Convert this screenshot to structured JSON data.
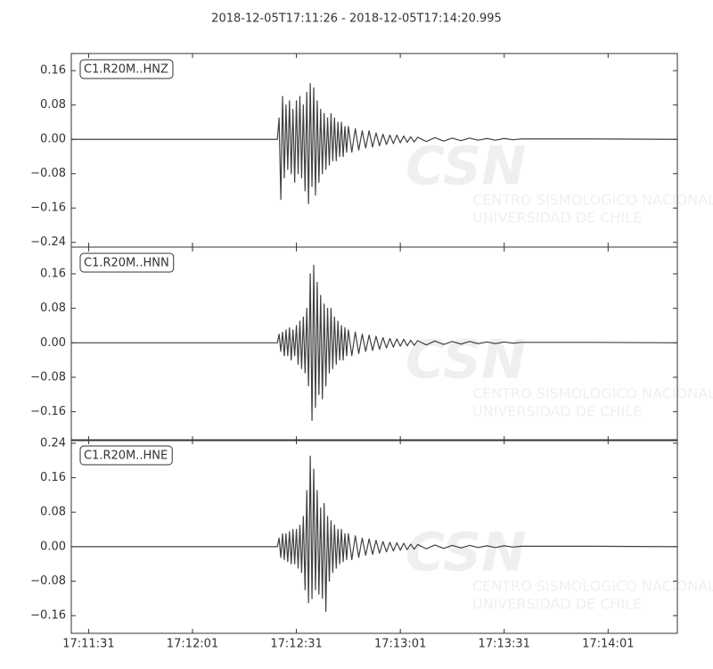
{
  "title": "2018-12-05T17:11:26  -  2018-12-05T17:14:20.995",
  "watermark": {
    "logo": "CSN",
    "line1": "CENTRO SISMOLOGICO NACIONAL",
    "line2": "UNIVERSIDAD DE CHILE"
  },
  "chart_data": [
    {
      "type": "line",
      "label": "C1.R20M..HNZ",
      "color": "#404040",
      "xlim": [
        0,
        174.995
      ],
      "ylim": [
        -0.251,
        0.2
      ],
      "yticks": [
        0.16,
        0.08,
        {
          "value": 0,
          "label": "0.00"
        },
        {
          "value": -0.08,
          "label": "−0.08"
        },
        {
          "value": -0.16,
          "label": "−0.16"
        },
        {
          "value": -0.24,
          "label": "−0.24"
        }
      ],
      "x": [
        0,
        30,
        59.5,
        60,
        60.5,
        61,
        61.5,
        62,
        62.5,
        63,
        63.5,
        64,
        64.5,
        65,
        65.5,
        66,
        66.5,
        67,
        67.5,
        68,
        68.5,
        69,
        69.5,
        70,
        70.5,
        71,
        71.5,
        72,
        72.5,
        73,
        73.5,
        74,
        74.5,
        75,
        75.5,
        76,
        76.5,
        77,
        77.5,
        78,
        78.5,
        79,
        79.5,
        80,
        81,
        82,
        83,
        84,
        85,
        86,
        87,
        88,
        89,
        90,
        91,
        92,
        93,
        94,
        95,
        96,
        97,
        98,
        99,
        100,
        102.5,
        105,
        107.5,
        110,
        112.5,
        115,
        117.5,
        120,
        122.5,
        125,
        127.5,
        130,
        150,
        174.995
      ],
      "series": [
        {
          "values": [
            0,
            0,
            0,
            0.05,
            -0.14,
            0.1,
            -0.09,
            0.08,
            -0.07,
            0.09,
            -0.08,
            0.07,
            -0.1,
            0.09,
            -0.08,
            0.1,
            -0.09,
            0.08,
            -0.12,
            0.11,
            -0.15,
            0.13,
            -0.11,
            0.12,
            -0.13,
            0.09,
            -0.1,
            0.07,
            -0.08,
            0.06,
            -0.07,
            0.05,
            -0.06,
            0.06,
            -0.05,
            0.05,
            -0.05,
            0.04,
            -0.04,
            0.04,
            -0.04,
            0.03,
            -0.03,
            0.03,
            -0.03,
            0.025,
            -0.025,
            0.02,
            -0.02,
            0.02,
            -0.018,
            0.015,
            -0.015,
            0.012,
            -0.012,
            0.01,
            -0.01,
            0.01,
            -0.008,
            0.008,
            -0.007,
            0.006,
            -0.006,
            0.005,
            -0.005,
            0.004,
            -0.004,
            0.003,
            -0.003,
            0.003,
            -0.002,
            0.002,
            -0.002,
            0.002,
            -0.001,
            0.001,
            0.001,
            0
          ]
        }
      ]
    },
    {
      "type": "line",
      "label": "C1.R20M..HNN",
      "color": "#404040",
      "xlim": [
        0,
        174.995
      ],
      "ylim": [
        -0.227,
        0.222
      ],
      "yticks": [
        0.16,
        0.08,
        {
          "value": 0,
          "label": "0.00"
        },
        {
          "value": -0.08,
          "label": "−0.08"
        },
        {
          "value": -0.16,
          "label": "−0.16"
        }
      ],
      "x": [
        0,
        30,
        59.5,
        60,
        60.5,
        61,
        61.5,
        62,
        62.5,
        63,
        63.5,
        64,
        64.5,
        65,
        65.5,
        66,
        66.5,
        67,
        67.5,
        68,
        68.5,
        69,
        69.5,
        70,
        70.5,
        71,
        71.5,
        72,
        72.5,
        73,
        73.5,
        74,
        74.5,
        75,
        75.5,
        76,
        76.5,
        77,
        77.5,
        78,
        78.5,
        79,
        79.5,
        80,
        81,
        82,
        83,
        84,
        85,
        86,
        87,
        88,
        89,
        90,
        91,
        92,
        93,
        94,
        95,
        96,
        97,
        98,
        99,
        100,
        102.5,
        105,
        107.5,
        110,
        112.5,
        115,
        117.5,
        120,
        122.5,
        125,
        127.5,
        130,
        150,
        174.995
      ],
      "series": [
        {
          "values": [
            0,
            0,
            0,
            0.02,
            -0.02,
            0.025,
            -0.03,
            0.03,
            -0.03,
            0.035,
            -0.04,
            0.03,
            -0.03,
            0.04,
            -0.05,
            0.05,
            -0.06,
            0.06,
            -0.07,
            0.08,
            -0.1,
            0.16,
            -0.18,
            0.18,
            -0.15,
            0.14,
            -0.12,
            0.11,
            -0.13,
            0.09,
            -0.1,
            0.08,
            -0.07,
            0.08,
            -0.06,
            0.06,
            -0.05,
            0.05,
            -0.04,
            0.04,
            -0.04,
            0.035,
            -0.03,
            0.03,
            -0.03,
            0.025,
            -0.025,
            0.02,
            -0.02,
            0.018,
            -0.018,
            0.015,
            -0.015,
            0.012,
            -0.012,
            0.01,
            -0.01,
            0.009,
            -0.008,
            0.008,
            -0.007,
            0.006,
            -0.006,
            0.005,
            -0.005,
            0.004,
            -0.004,
            0.003,
            -0.003,
            0.003,
            -0.002,
            0.002,
            -0.002,
            0.002,
            -0.001,
            0.001,
            0.001,
            0
          ]
        }
      ]
    },
    {
      "type": "line",
      "label": "C1.R20M..HNE",
      "color": "#404040",
      "xlim": [
        0,
        174.995
      ],
      "ylim": [
        -0.201,
        0.248
      ],
      "yticks": [
        0.24,
        0.16,
        0.08,
        {
          "value": 0,
          "label": "0.00"
        },
        {
          "value": -0.08,
          "label": "−0.08"
        },
        {
          "value": -0.16,
          "label": "−0.16"
        }
      ],
      "xticks": [
        {
          "value": 5,
          "label": "17:11:31"
        },
        {
          "value": 35,
          "label": "17:12:01"
        },
        {
          "value": 65,
          "label": "17:12:31"
        },
        {
          "value": 95,
          "label": "17:13:01"
        },
        {
          "value": 125,
          "label": "17:13:31"
        },
        {
          "value": 155,
          "label": "17:14:01"
        }
      ],
      "x": [
        0,
        30,
        59.5,
        60,
        60.5,
        61,
        61.5,
        62,
        62.5,
        63,
        63.5,
        64,
        64.5,
        65,
        65.5,
        66,
        66.5,
        67,
        67.5,
        68,
        68.5,
        69,
        69.5,
        70,
        70.5,
        71,
        71.5,
        72,
        72.5,
        73,
        73.5,
        74,
        74.5,
        75,
        75.5,
        76,
        76.5,
        77,
        77.5,
        78,
        78.5,
        79,
        79.5,
        80,
        81,
        82,
        83,
        84,
        85,
        86,
        87,
        88,
        89,
        90,
        91,
        92,
        93,
        94,
        95,
        96,
        97,
        98,
        99,
        100,
        102.5,
        105,
        107.5,
        110,
        112.5,
        115,
        117.5,
        120,
        122.5,
        125,
        127.5,
        130,
        150,
        174.995
      ],
      "series": [
        {
          "values": [
            0,
            0,
            0,
            0.02,
            -0.025,
            0.03,
            -0.03,
            0.03,
            -0.035,
            0.035,
            -0.04,
            0.04,
            -0.04,
            0.04,
            -0.05,
            0.05,
            -0.06,
            0.07,
            -0.1,
            0.13,
            -0.13,
            0.21,
            -0.12,
            0.18,
            -0.1,
            0.13,
            -0.11,
            0.09,
            -0.12,
            0.1,
            -0.15,
            0.07,
            -0.08,
            0.06,
            -0.06,
            0.05,
            -0.05,
            0.04,
            -0.04,
            0.04,
            -0.035,
            0.03,
            -0.03,
            0.03,
            -0.03,
            0.025,
            -0.025,
            0.02,
            -0.02,
            0.018,
            -0.018,
            0.015,
            -0.015,
            0.012,
            -0.012,
            0.01,
            -0.01,
            0.009,
            -0.008,
            0.008,
            -0.007,
            0.006,
            -0.006,
            0.005,
            -0.005,
            0.004,
            -0.004,
            0.003,
            -0.003,
            0.003,
            -0.002,
            0.002,
            -0.002,
            0.002,
            -0.001,
            0.001,
            0.001,
            0
          ]
        }
      ]
    }
  ]
}
